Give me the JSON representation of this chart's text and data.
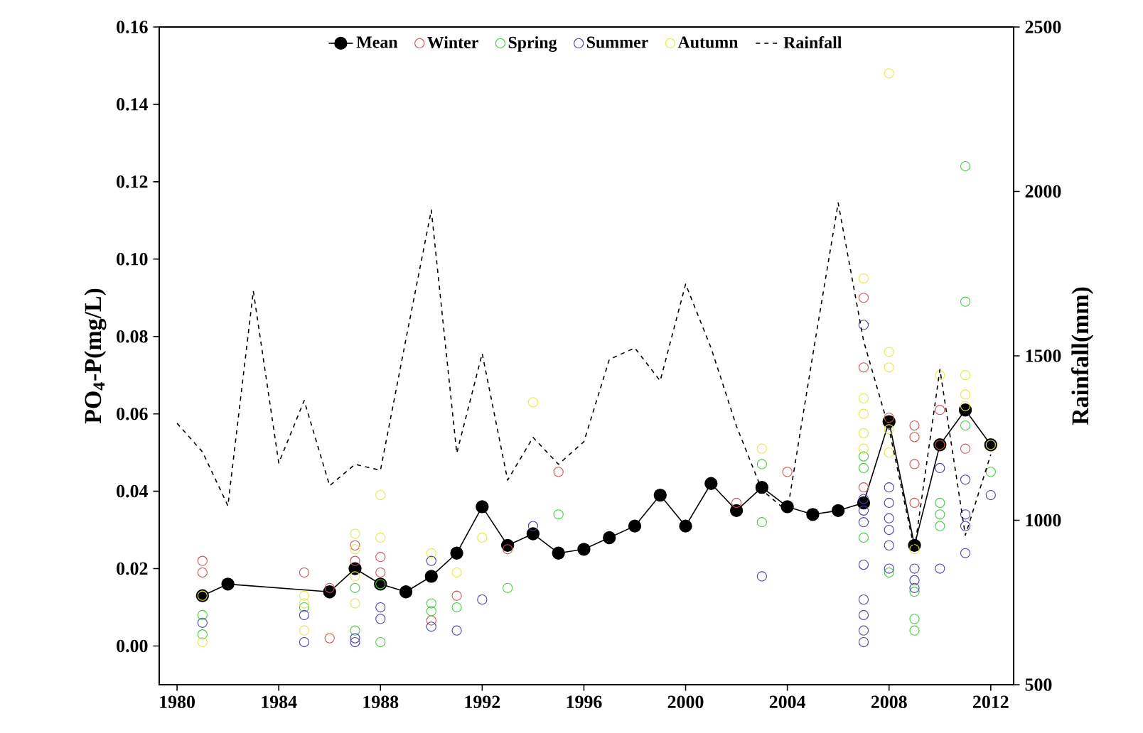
{
  "chart_data": {
    "type": "scatter",
    "ylabel": "PO$_{4}$-P(mg/L)",
    "y2label": "Rainfall(mm)",
    "xlim": [
      1979.3,
      2012.9
    ],
    "xticks": [
      1980,
      1984,
      1988,
      1992,
      1996,
      2000,
      2004,
      2008,
      2012
    ],
    "ylim": [
      -0.01,
      0.16
    ],
    "yticks": [
      {
        "value": 0,
        "label": "0.00"
      },
      {
        "value": 0.02,
        "label": "0.02"
      },
      {
        "value": 0.04,
        "label": "0.04"
      },
      {
        "value": 0.06,
        "label": "0.06"
      },
      {
        "value": 0.08,
        "label": "0.08"
      },
      {
        "value": 0.1,
        "label": "0.10"
      },
      {
        "value": 0.12,
        "label": "0.12"
      },
      {
        "value": 0.14,
        "label": "0.14"
      },
      {
        "value": 0.16,
        "label": "0.16"
      }
    ],
    "y2lim": [
      500,
      2500
    ],
    "y2ticks": [
      500,
      1000,
      1500,
      2000,
      2500
    ],
    "legend": "top",
    "marker": "circle",
    "series": [
      {
        "name": "Mean",
        "type": "line",
        "color": "#000000",
        "line_style": "solid",
        "x": [
          1981,
          1982,
          1986,
          1987,
          1988,
          1989,
          1990,
          1991,
          1992,
          1993,
          1994,
          1995,
          1996,
          1997,
          1998,
          1999,
          2000,
          2001,
          2002,
          2003,
          2004,
          2005,
          2006,
          2007,
          2008,
          2009,
          2010,
          2011,
          2012
        ],
        "values": [
          0.013,
          0.016,
          0.014,
          0.02,
          0.016,
          0.014,
          0.018,
          0.024,
          0.036,
          0.026,
          0.029,
          0.024,
          0.025,
          0.028,
          0.031,
          0.039,
          0.031,
          0.042,
          0.035,
          0.041,
          0.036,
          0.034,
          0.035,
          0.037,
          0.058,
          0.026,
          0.052,
          0.061,
          0.052
        ]
      },
      {
        "name": "Winter",
        "color": "#cc5555",
        "x": [
          1981,
          1981,
          1985,
          1986,
          1986,
          1987,
          1987,
          1988,
          1988,
          1990,
          1991,
          1993,
          1995,
          2002,
          2004,
          2007,
          2007,
          2007,
          2008,
          2009,
          2009,
          2009,
          2009,
          2010,
          2010,
          2011
        ],
        "values": [
          0.022,
          0.019,
          0.019,
          0.015,
          0.002,
          0.026,
          0.022,
          0.023,
          0.019,
          0.0066,
          0.013,
          0.025,
          0.045,
          0.037,
          0.045,
          0.09,
          0.072,
          0.041,
          0.059,
          0.057,
          0.054,
          0.047,
          0.037,
          0.061,
          0.052,
          0.051
        ]
      },
      {
        "name": "Spring",
        "color": "#44cc44",
        "x": [
          1981,
          1981,
          1985,
          1987,
          1987,
          1988,
          1988,
          1990,
          1990,
          1991,
          1993,
          1995,
          2003,
          2003,
          2007,
          2007,
          2007,
          2008,
          2009,
          2009,
          2009,
          2010,
          2010,
          2010,
          2011,
          2011,
          2011,
          2012
        ],
        "values": [
          0.008,
          0.003,
          0.01,
          0.004,
          0.015,
          0.016,
          0.001,
          0.011,
          0.009,
          0.01,
          0.015,
          0.034,
          0.047,
          0.032,
          0.049,
          0.046,
          0.028,
          0.019,
          0.014,
          0.007,
          0.004,
          0.037,
          0.034,
          0.031,
          0.124,
          0.089,
          0.057,
          0.045
        ]
      },
      {
        "name": "Summer",
        "color": "#4444aa",
        "x": [
          1981,
          1985,
          1985,
          1987,
          1987,
          1988,
          1988,
          1990,
          1990,
          1991,
          1992,
          1994,
          2003,
          2007,
          2007,
          2007,
          2007,
          2007,
          2007,
          2007,
          2007,
          2007,
          2008,
          2008,
          2008,
          2008,
          2008,
          2008,
          2009,
          2009,
          2009,
          2010,
          2010,
          2011,
          2011,
          2011,
          2011,
          2012
        ],
        "values": [
          0.006,
          0.008,
          0.001,
          0.002,
          0.001,
          0.01,
          0.007,
          0.022,
          0.005,
          0.004,
          0.012,
          0.031,
          0.018,
          0.083,
          0.038,
          0.035,
          0.032,
          0.021,
          0.012,
          0.008,
          0.004,
          0.001,
          0.041,
          0.037,
          0.033,
          0.03,
          0.026,
          0.02,
          0.02,
          0.017,
          0.015,
          0.046,
          0.02,
          0.043,
          0.034,
          0.031,
          0.024,
          0.039
        ]
      },
      {
        "name": "Autumn",
        "color": "#e8e840",
        "x": [
          1981,
          1981,
          1985,
          1985,
          1985,
          1987,
          1987,
          1987,
          1987,
          1988,
          1988,
          1990,
          1991,
          1992,
          1994,
          2003,
          2007,
          2007,
          2007,
          2007,
          2007,
          2008,
          2008,
          2008,
          2008,
          2008,
          2009,
          2010,
          2011,
          2011,
          2011,
          2012
        ],
        "values": [
          0.013,
          0.001,
          0.013,
          0.011,
          0.004,
          0.029,
          0.025,
          0.018,
          0.011,
          0.039,
          0.028,
          0.024,
          0.019,
          0.028,
          0.063,
          0.051,
          0.095,
          0.064,
          0.06,
          0.055,
          0.051,
          0.148,
          0.076,
          0.072,
          0.056,
          0.05,
          0.025,
          0.07,
          0.07,
          0.065,
          0.062,
          0.052
        ]
      },
      {
        "name": "Rainfall",
        "type": "line",
        "axis": "y2",
        "marker": "none",
        "line_style": "dashed",
        "color": "#000000",
        "x": [
          1980,
          1981,
          1982,
          1983,
          1984,
          1985,
          1986,
          1987,
          1988,
          1989,
          1990,
          1991,
          1992,
          1993,
          1994,
          1995,
          1996,
          1997,
          1998,
          1999,
          2000,
          2001,
          2002,
          2003,
          2004,
          2005,
          2006,
          2007,
          2008,
          2009,
          2010,
          2011,
          2012
        ],
        "values": [
          1295,
          1208,
          1044,
          1697,
          1174,
          1364,
          1105,
          1170,
          1152,
          1550,
          1943,
          1204,
          1507,
          1122,
          1252,
          1170,
          1239,
          1489,
          1524,
          1424,
          1718,
          1524,
          1286,
          1092,
          1027,
          1502,
          1965,
          1545,
          1278,
          910,
          1459,
          954,
          1200
        ]
      }
    ]
  }
}
